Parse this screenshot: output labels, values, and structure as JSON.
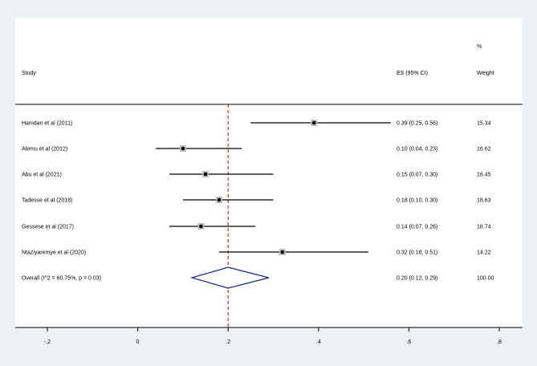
{
  "chart_data": {
    "type": "forest",
    "headers": {
      "study": "Study",
      "es": "ES (95% CI)",
      "weight_top": "%",
      "weight": "Weight"
    },
    "studies": [
      {
        "name": "Hamdan et al (2011)",
        "es": 0.39,
        "lo": 0.25,
        "hi": 0.56,
        "es_label": "0.39 (0.25, 0.56)",
        "weight": "15.34"
      },
      {
        "name": "Alemu et al (2012)",
        "es": 0.1,
        "lo": 0.04,
        "hi": 0.23,
        "es_label": "0.10 (0.04, 0.23)",
        "weight": "16.62"
      },
      {
        "name": "Abu et al (2021)",
        "es": 0.15,
        "lo": 0.07,
        "hi": 0.3,
        "es_label": "0.15 (0.07, 0.30)",
        "weight": "16.45"
      },
      {
        "name": "Tadesse et al (2018)",
        "es": 0.18,
        "lo": 0.1,
        "hi": 0.3,
        "es_label": "0.18 (0.10, 0.30)",
        "weight": "18.63"
      },
      {
        "name": "Gessese et al (2017)",
        "es": 0.14,
        "lo": 0.07,
        "hi": 0.26,
        "es_label": "0.14 (0.07, 0.26)",
        "weight": "18.74"
      },
      {
        "name": "Ntaziyaremye et al (2020)",
        "es": 0.32,
        "lo": 0.18,
        "hi": 0.51,
        "es_label": "0.32 (0.18, 0.51)",
        "weight": "14.22"
      }
    ],
    "overall": {
      "name": "Overall  (I^2 = 60.75%, p = 0.03)",
      "es": 0.2,
      "lo": 0.12,
      "hi": 0.29,
      "es_label": "0.20 (0.12, 0.29)",
      "weight": "100.00"
    },
    "reference_line": 0.2,
    "xlim": [
      -0.2,
      0.8
    ],
    "xticks": [
      -0.2,
      0,
      0.2,
      0.4,
      0.6,
      0.8
    ],
    "xtick_labels": [
      "-.2",
      "0",
      ".2",
      ".4",
      ".6",
      ".8"
    ],
    "grid": false,
    "colors": {
      "ci_line": "#000000",
      "reference": "#cc0000",
      "diamond": "#1a237e",
      "axis": "#000000",
      "background": "#ebf1f5",
      "panel": "#ffffff"
    }
  }
}
